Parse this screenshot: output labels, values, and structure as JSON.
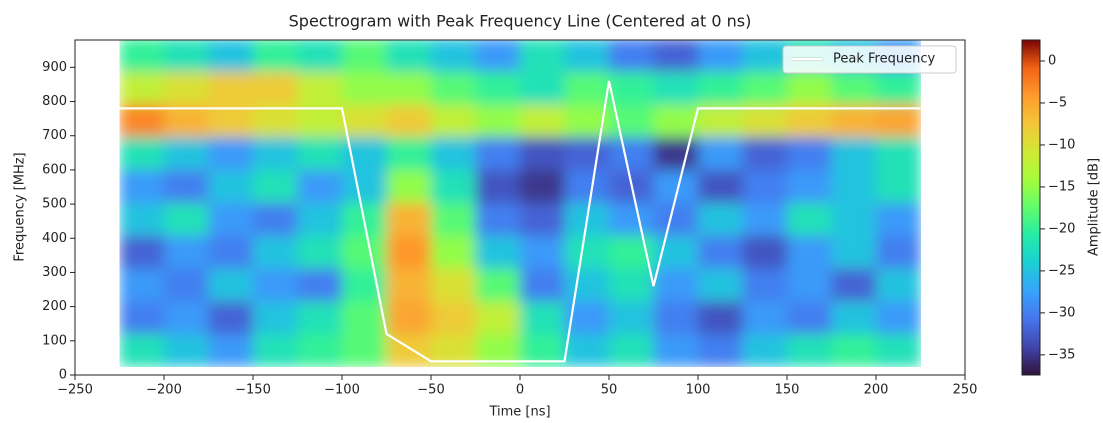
{
  "chart_data": {
    "type": "spectrogram",
    "title": "Spectrogram with Peak Frequency Line (Centered at 0 ns)",
    "x_label": "Time [ns]",
    "y_label": "Frequency [MHz]",
    "colorbar_label": "Amplitude [dB]",
    "colormap": [
      "#30123b",
      "#4145ab",
      "#4675ed",
      "#39a2fc",
      "#1bcfd4",
      "#24eca6",
      "#61fc6c",
      "#a4fc3b",
      "#d1e834",
      "#f3c63a",
      "#fe9b2d",
      "#f36315",
      "#7a0403"
    ],
    "xlim": [
      -250,
      250
    ],
    "xticks": [
      {
        "value": -250,
        "label": "−250"
      },
      {
        "value": -200,
        "label": "−200"
      },
      {
        "value": -150,
        "label": "−150"
      },
      {
        "value": -100,
        "label": "−100"
      },
      {
        "value": -50,
        "label": "−50"
      },
      0,
      50,
      100,
      150,
      200,
      250
    ],
    "ylim": [
      0,
      980
    ],
    "yticks": [
      0,
      100,
      200,
      300,
      400,
      500,
      600,
      700,
      800,
      900
    ],
    "clim": [
      -37.4,
      2.5
    ],
    "cticks": [
      0,
      {
        "value": -5,
        "label": "−5"
      },
      {
        "value": -10,
        "label": "−10"
      },
      {
        "value": -15,
        "label": "−15"
      },
      {
        "value": -20,
        "label": "−20"
      },
      {
        "value": -25,
        "label": "−25"
      },
      {
        "value": -30,
        "label": "−30"
      },
      {
        "value": -35,
        "label": "−35"
      }
    ],
    "time_bins": [
      -225,
      -200,
      -175,
      -150,
      -125,
      -100,
      -75,
      -50,
      -25,
      0,
      25,
      50,
      75,
      100,
      125,
      150,
      175,
      200,
      225
    ],
    "freq_bins": [
      25,
      121,
      217,
      313,
      409,
      505,
      601,
      697,
      793,
      889,
      985
    ],
    "z": [
      [
        -22,
        -25,
        -28,
        -22,
        -20,
        -18,
        -8,
        -10,
        -15,
        -20,
        -25,
        -22,
        -28,
        -30,
        -25,
        -22,
        -20,
        -22
      ],
      [
        -30,
        -28,
        -32,
        -25,
        -22,
        -18,
        -5,
        -8,
        -12,
        -22,
        -28,
        -25,
        -30,
        -33,
        -28,
        -30,
        -25,
        -28
      ],
      [
        -28,
        -30,
        -25,
        -28,
        -30,
        -20,
        -6,
        -10,
        -18,
        -30,
        -25,
        -22,
        -28,
        -25,
        -30,
        -28,
        -32,
        -25
      ],
      [
        -32,
        -28,
        -30,
        -25,
        -22,
        -18,
        -4,
        -15,
        -25,
        -28,
        -22,
        -20,
        -25,
        -30,
        -33,
        -28,
        -25,
        -30
      ],
      [
        -25,
        -22,
        -28,
        -30,
        -25,
        -20,
        -6,
        -18,
        -30,
        -32,
        -25,
        -28,
        -30,
        -25,
        -28,
        -22,
        -25,
        -28
      ],
      [
        -28,
        -30,
        -25,
        -22,
        -28,
        -25,
        -15,
        -22,
        -33,
        -35,
        -30,
        -32,
        -28,
        -33,
        -30,
        -28,
        -25,
        -22
      ],
      [
        -22,
        -25,
        -28,
        -25,
        -22,
        -25,
        -20,
        -25,
        -30,
        -33,
        -32,
        -30,
        -35,
        -28,
        -32,
        -30,
        -25,
        -22
      ],
      [
        -3,
        -6,
        -8,
        -10,
        -12,
        -10,
        -8,
        -12,
        -15,
        -12,
        -15,
        -18,
        -15,
        -12,
        -10,
        -8,
        -6,
        -5
      ],
      [
        -12,
        -10,
        -8,
        -8,
        -12,
        -15,
        -15,
        -18,
        -20,
        -22,
        -18,
        -20,
        -22,
        -20,
        -18,
        -15,
        -18,
        -20
      ],
      [
        -20,
        -22,
        -25,
        -20,
        -22,
        -18,
        -22,
        -25,
        -28,
        -22,
        -25,
        -30,
        -32,
        -28,
        -25,
        -22,
        -25,
        -28
      ]
    ],
    "series": [
      {
        "name": "Peak Frequency",
        "color": "#ffffff",
        "x": [
          -225,
          -100,
          -75,
          -50,
          25,
          50,
          75,
          100,
          225
        ],
        "values": [
          780,
          780,
          120,
          40,
          40,
          860,
          260,
          780,
          780
        ]
      }
    ],
    "legend": "upper right"
  }
}
